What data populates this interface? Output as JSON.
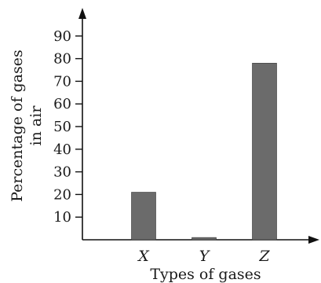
{
  "chart_data": {
    "type": "bar",
    "categories": [
      "X",
      "Y",
      "Z"
    ],
    "values": [
      21,
      1,
      78
    ],
    "yticks": [
      10,
      20,
      30,
      40,
      50,
      60,
      70,
      80,
      90
    ],
    "ylim": [
      0,
      100
    ],
    "xlabel": "Types of gases",
    "ylabel_lines": [
      "Percentage of gases",
      "in air"
    ],
    "bar_color": "#6b6b6b",
    "grid": false,
    "legend": "none"
  }
}
